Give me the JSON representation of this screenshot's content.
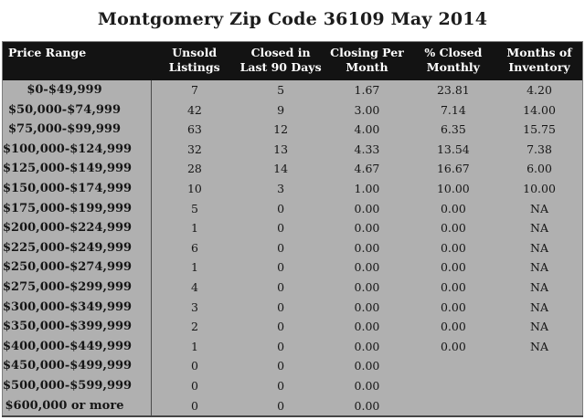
{
  "title": "Montgomery Zip Code 36109 May 2014",
  "colors": {
    "page_bg": "#ffffff",
    "header_bg": "#131313",
    "header_text": "#ffffff",
    "row_bg": "#b0b0b0",
    "divider": "#4c4c4c",
    "title_text": "#1c1c1c"
  },
  "chart_data": {
    "type": "table",
    "title": "Montgomery Zip Code 36109 May 2014",
    "columns": [
      "Price Range",
      "Unsold Listings",
      "Closed in Last 90 Days",
      "Closing Per Month",
      "% Closed Monthly",
      "Months of Inventory"
    ],
    "header_lines": [
      [
        "Price Range",
        ""
      ],
      [
        "Unsold",
        "Listings"
      ],
      [
        "Closed in",
        "Last 90 Days"
      ],
      [
        "Closing Per",
        "Month"
      ],
      [
        "% Closed",
        "Monthly"
      ],
      [
        "Months of",
        "Inventory"
      ]
    ],
    "rows": [
      [
        "$0-$49,999",
        "7",
        "5",
        "1.67",
        "23.81",
        "4.20"
      ],
      [
        "$50,000-$74,999",
        "42",
        "9",
        "3.00",
        "7.14",
        "14.00"
      ],
      [
        "$75,000-$99,999",
        "63",
        "12",
        "4.00",
        "6.35",
        "15.75"
      ],
      [
        "$100,000-$124,999",
        "32",
        "13",
        "4.33",
        "13.54",
        "7.38"
      ],
      [
        "$125,000-$149,999",
        "28",
        "14",
        "4.67",
        "16.67",
        "6.00"
      ],
      [
        "$150,000-$174,999",
        "10",
        "3",
        "1.00",
        "10.00",
        "10.00"
      ],
      [
        "$175,000-$199,999",
        "5",
        "0",
        "0.00",
        "0.00",
        "NA"
      ],
      [
        "$200,000-$224,999",
        "1",
        "0",
        "0.00",
        "0.00",
        "NA"
      ],
      [
        "$225,000-$249,999",
        "6",
        "0",
        "0.00",
        "0.00",
        "NA"
      ],
      [
        "$250,000-$274,999",
        "1",
        "0",
        "0.00",
        "0.00",
        "NA"
      ],
      [
        "$275,000-$299,999",
        "4",
        "0",
        "0.00",
        "0.00",
        "NA"
      ],
      [
        "$300,000-$349,999",
        "3",
        "0",
        "0.00",
        "0.00",
        "NA"
      ],
      [
        "$350,000-$399,999",
        "2",
        "0",
        "0.00",
        "0.00",
        "NA"
      ],
      [
        "$400,000-$449,999",
        "1",
        "0",
        "0.00",
        "0.00",
        "NA"
      ],
      [
        "$450,000-$499,999",
        "0",
        "0",
        "0.00",
        "",
        ""
      ],
      [
        "$500,000-$599,999",
        "0",
        "0",
        "0.00",
        "",
        ""
      ],
      [
        "$600,000 or more",
        "0",
        "0",
        "0.00",
        "",
        ""
      ]
    ]
  }
}
